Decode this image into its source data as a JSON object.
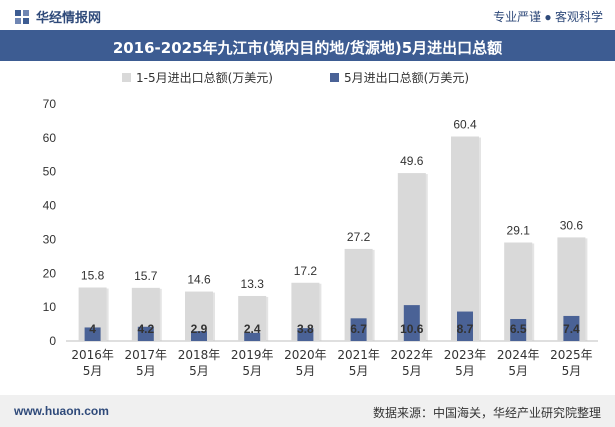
{
  "header": {
    "brand": "华经情报网",
    "slogan": "专业严谨 ● 客观科学"
  },
  "title": "2016-2025年九江市(境内目的地/货源地)5月进出口总额",
  "footer": {
    "website": "www.huaon.com",
    "source": "数据来源：中国海关，华经产业研究院整理"
  },
  "colors": {
    "title_bg": "#3d5c92",
    "series_total": "#d9d9d9",
    "series_may": "#4a6296"
  },
  "chart_data": {
    "type": "bar",
    "categories": [
      "2016年\n5月",
      "2017年\n5月",
      "2018年\n5月",
      "2019年\n5月",
      "2020年\n5月",
      "2021年\n5月",
      "2022年\n5月",
      "2023年\n5月",
      "2024年\n5月",
      "2025年\n5月"
    ],
    "series": [
      {
        "name": "1-5月进出口总额(万美元)",
        "values": [
          15.8,
          15.7,
          14.6,
          13.3,
          17.2,
          27.2,
          49.6,
          60.4,
          29.1,
          30.6
        ]
      },
      {
        "name": "5月进出口总额(万美元)",
        "values": [
          4,
          4.2,
          2.9,
          2.4,
          3.8,
          6.7,
          10.6,
          8.7,
          6.5,
          7.4
        ]
      }
    ],
    "ylim": [
      0,
      70
    ],
    "yticks": [
      0,
      10,
      20,
      30,
      40,
      50,
      60,
      70
    ],
    "legend_position": "top"
  }
}
